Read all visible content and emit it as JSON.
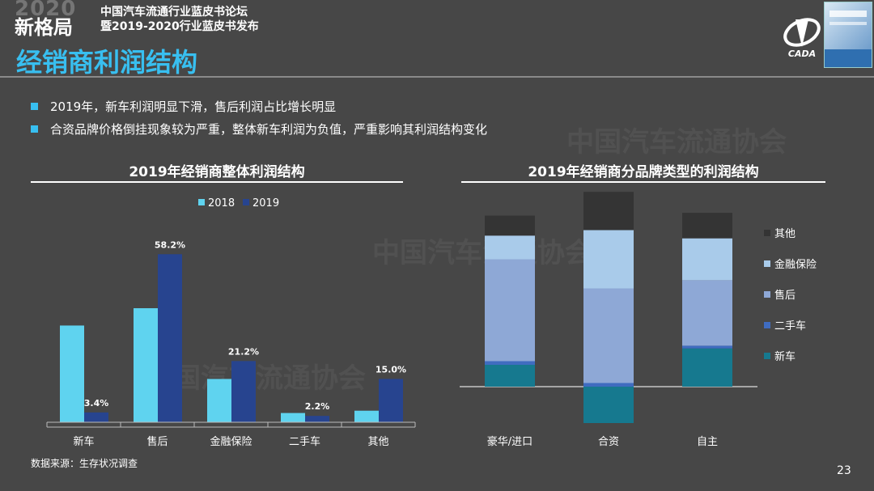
{
  "header": {
    "brand_year": "2020",
    "brand_name": "新格局",
    "forum_line1": "中国汽车流通行业蓝皮书论坛",
    "forum_line2": "暨2019-2020行业蓝皮书发布",
    "logo_text": "CADA"
  },
  "page_title": "经销商利润结构",
  "bullets": [
    "2019年，新车利润明显下滑，售后利润占比增长明显",
    "合资品牌价格倒挂现象较为严重，整体新车利润为负值，严重影响其利润结构变化"
  ],
  "watermark": "中国汽车流通协会",
  "source": "数据来源：生存状况调查",
  "page_number": "23",
  "colors": {
    "accent": "#38bff0",
    "light_cyan": "#5fd3ef",
    "navy": "#27448f",
    "dark": "#343434",
    "pale_blue": "#a9cbea",
    "lavender_blue": "#8ea8d6",
    "mid_blue": "#3f6cc0",
    "teal": "#16798f"
  },
  "chart_data": [
    {
      "type": "bar",
      "title": "2019年经销商整体利润结构",
      "categories": [
        "新车",
        "售后",
        "金融保险",
        "二手车",
        "其他"
      ],
      "series": [
        {
          "name": "2018",
          "values": [
            33.5,
            39.5,
            15.0,
            3.2,
            4.0
          ],
          "labels": [
            "",
            "",
            "",
            "",
            ""
          ]
        },
        {
          "name": "2019",
          "values": [
            3.4,
            58.2,
            21.2,
            2.2,
            15.0
          ],
          "labels": [
            "3.4%",
            "58.2%",
            "21.2%",
            "2.2%",
            "15.0%"
          ]
        }
      ],
      "legend_position": "top-center",
      "ylim": [
        0,
        65
      ],
      "grid": false
    },
    {
      "type": "bar",
      "stacked": true,
      "title": "2019年经销商分品牌类型的利润结构",
      "categories": [
        "豪华/进口",
        "合资",
        "自主"
      ],
      "series": [
        {
          "name": "新车",
          "values": [
            12,
            -20,
            21
          ]
        },
        {
          "name": "二手车",
          "values": [
            2,
            2,
            1.5
          ]
        },
        {
          "name": "售后",
          "values": [
            56,
            52,
            36
          ]
        },
        {
          "name": "金融保险",
          "values": [
            13,
            32,
            23
          ]
        },
        {
          "name": "其他",
          "values": [
            11,
            21,
            14
          ]
        }
      ],
      "legend_position": "right",
      "legend_order": [
        "其他",
        "金融保险",
        "售后",
        "二手车",
        "新车"
      ],
      "ylim": [
        -20,
        105
      ],
      "grid": false
    }
  ]
}
